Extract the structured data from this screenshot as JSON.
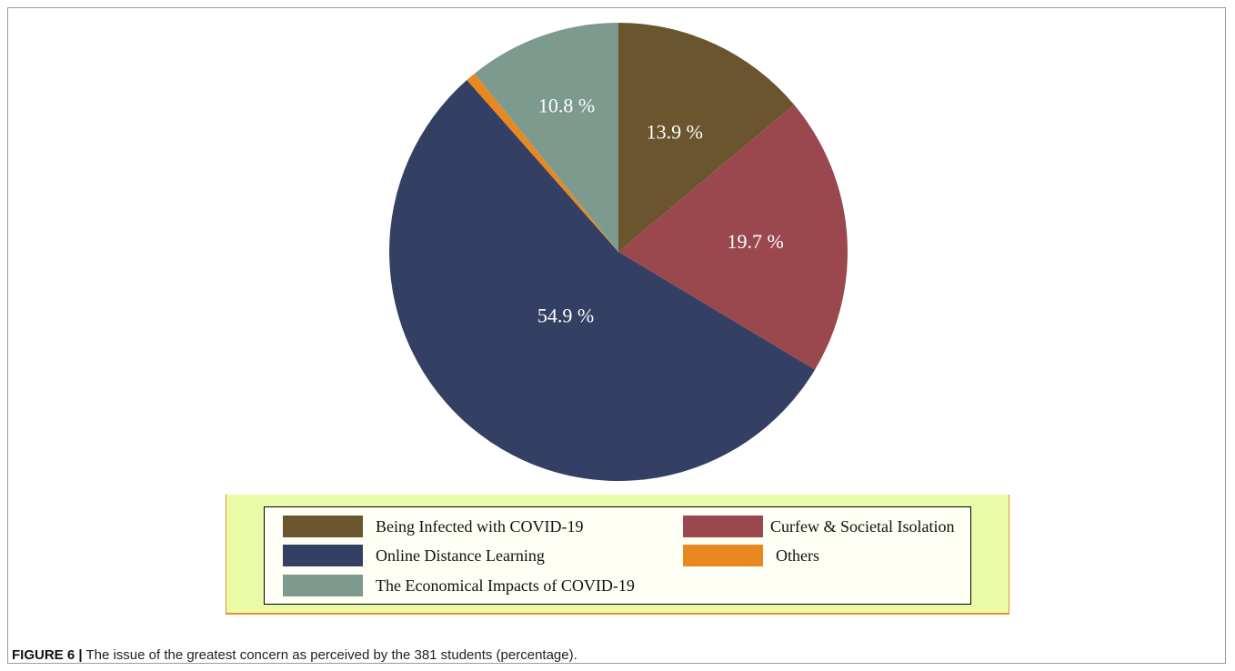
{
  "chart_data": {
    "type": "pie",
    "start_angle_deg": 0,
    "direction": "clockwise",
    "slices": [
      {
        "name": "Being Infected with COVID-19",
        "value": 13.9,
        "label": "13.9 %",
        "color": "#6b552f"
      },
      {
        "name": "Curfew & Societal Isolation",
        "value": 19.7,
        "label": "19.7 %",
        "color": "#9a474e"
      },
      {
        "name": "Online Distance Learning",
        "value": 54.9,
        "label": "54.9 %",
        "color": "#344063"
      },
      {
        "name": "Others",
        "value": 0.7,
        "label": "",
        "color": "#e8891f"
      },
      {
        "name": "The Economical Impacts of COVID-19",
        "value": 10.8,
        "label": "10.8 %",
        "color": "#7d9a8e"
      }
    ],
    "legend_placement": "bottom",
    "legend_background": "#eafba8"
  },
  "legend": [
    "Being Infected with COVID-19",
    "Curfew & Societal Isolation",
    "Online Distance Learning",
    "Others",
    "The Economical Impacts of COVID-19"
  ],
  "caption": {
    "figure": "FIGURE 6 |",
    "text": " The issue of the greatest concern as perceived by the 381 students (percentage)."
  }
}
